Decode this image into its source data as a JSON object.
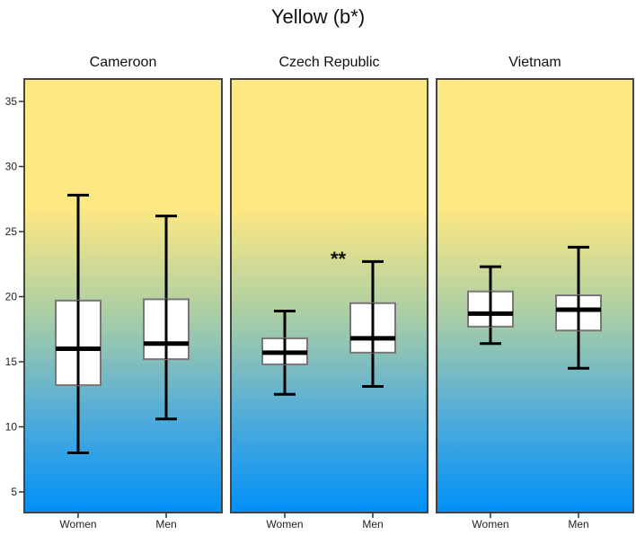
{
  "chart_data": {
    "type": "boxplot",
    "title": "Yellow (b*)",
    "ylim": [
      3.5,
      36.5
    ],
    "yticks": [
      5,
      10,
      15,
      20,
      25,
      30,
      35
    ],
    "categories": [
      "Women",
      "Men"
    ],
    "panels": [
      {
        "name": "Cameroon",
        "groups": [
          {
            "label": "Women",
            "min": 8.0,
            "q1": 13.2,
            "median": 16.0,
            "q3": 19.7,
            "max": 27.8
          },
          {
            "label": "Men",
            "min": 10.6,
            "q1": 15.2,
            "median": 16.4,
            "q3": 19.8,
            "max": 26.2
          }
        ]
      },
      {
        "name": "Czech Republic",
        "annotation": "**",
        "groups": [
          {
            "label": "Women",
            "min": 12.5,
            "q1": 14.8,
            "median": 15.7,
            "q3": 16.8,
            "max": 18.9
          },
          {
            "label": "Men",
            "min": 13.1,
            "q1": 15.7,
            "median": 16.8,
            "q3": 19.5,
            "max": 22.7
          }
        ]
      },
      {
        "name": "Vietnam",
        "groups": [
          {
            "label": "Women",
            "min": 16.4,
            "q1": 17.7,
            "median": 18.7,
            "q3": 20.4,
            "max": 22.3
          },
          {
            "label": "Men",
            "min": 14.5,
            "q1": 17.4,
            "median": 19.0,
            "q3": 20.1,
            "max": 23.8
          }
        ]
      }
    ],
    "colors": {
      "top": "#fde883",
      "mid": "#9fcaa6",
      "bottom": "#0090f8"
    }
  }
}
